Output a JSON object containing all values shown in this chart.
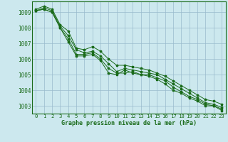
{
  "title": "Graphe pression niveau de la mer (hPa)",
  "bg_color": "#cce8ee",
  "grid_color": "#99bbcc",
  "line_color": "#1a6b1a",
  "text_color": "#1a6b1a",
  "xlim": [
    -0.5,
    23.5
  ],
  "ylim": [
    1002.5,
    1009.7
  ],
  "yticks": [
    1003,
    1004,
    1005,
    1006,
    1007,
    1008,
    1009
  ],
  "ytick_labels": [
    "1003",
    "1004",
    "1005",
    "1006",
    "1007",
    "1008",
    "1009"
  ],
  "xticks": [
    0,
    1,
    2,
    3,
    4,
    5,
    6,
    7,
    8,
    9,
    10,
    11,
    12,
    13,
    14,
    15,
    16,
    17,
    18,
    19,
    20,
    21,
    22,
    23
  ],
  "series": [
    [
      1009.1,
      1009.2,
      1009.0,
      1008.0,
      1007.1,
      1006.2,
      1006.2,
      1006.3,
      1005.9,
      1005.1,
      1005.0,
      1005.3,
      1005.1,
      1005.0,
      1004.9,
      1004.7,
      1004.4,
      1004.0,
      1003.8,
      1003.5,
      1003.3,
      1003.0,
      1003.0,
      1002.7
    ],
    [
      1009.1,
      1009.2,
      1009.0,
      1008.0,
      1007.3,
      1006.3,
      1006.3,
      1006.4,
      1006.0,
      1005.4,
      1005.1,
      1005.1,
      1005.2,
      1005.0,
      1005.0,
      1004.8,
      1004.6,
      1004.2,
      1003.9,
      1003.6,
      1003.4,
      1003.1,
      1003.0,
      1002.8
    ],
    [
      1009.1,
      1009.3,
      1009.1,
      1008.1,
      1007.5,
      1006.6,
      1006.4,
      1006.5,
      1006.2,
      1005.7,
      1005.2,
      1005.4,
      1005.3,
      1005.2,
      1005.1,
      1005.0,
      1004.7,
      1004.4,
      1004.1,
      1003.8,
      1003.5,
      1003.2,
      1003.1,
      1002.9
    ],
    [
      1009.2,
      1009.4,
      1009.2,
      1008.2,
      1007.8,
      1006.7,
      1006.6,
      1006.8,
      1006.5,
      1006.0,
      1005.6,
      1005.6,
      1005.5,
      1005.4,
      1005.3,
      1005.1,
      1004.9,
      1004.6,
      1004.3,
      1004.0,
      1003.7,
      1003.4,
      1003.3,
      1003.1
    ]
  ]
}
